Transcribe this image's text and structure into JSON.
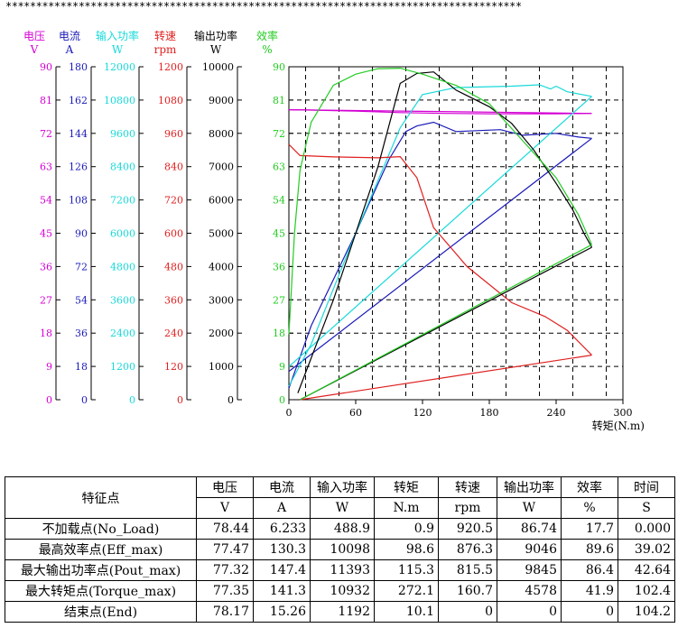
{
  "header_stars": "*************************************************************************************",
  "chart_data": {
    "type": "line",
    "x_label": "转矩(N.m)",
    "x_range": [
      0,
      300
    ],
    "x_ticks": [
      0,
      60,
      120,
      180,
      240,
      300
    ],
    "axes": [
      {
        "name": "电压",
        "unit": "V",
        "color": "#d400d4",
        "range": [
          0,
          90
        ],
        "ticks": [
          "0",
          "9",
          "18",
          "27",
          "36",
          "45",
          "54",
          "63",
          "72",
          "81",
          "90"
        ]
      },
      {
        "name": "电流",
        "unit": "A",
        "color": "#1a1ab8",
        "range": [
          0,
          180
        ],
        "ticks": [
          "0",
          "18",
          "36",
          "54",
          "72",
          "90",
          "108",
          "126",
          "144",
          "162",
          "180"
        ]
      },
      {
        "name": "输入功率",
        "unit": "W",
        "color": "#19d9d9",
        "range": [
          0,
          12000
        ],
        "ticks": [
          "0",
          "1200",
          "2400",
          "3600",
          "4800",
          "6000",
          "7200",
          "8400",
          "9600",
          "10800",
          "12000"
        ]
      },
      {
        "name": "转速",
        "unit": "rpm",
        "color": "#e02020",
        "range": [
          0,
          1200
        ],
        "ticks": [
          "0",
          "120",
          "240",
          "360",
          "480",
          "600",
          "720",
          "840",
          "960",
          "1080",
          "1200"
        ]
      },
      {
        "name": "输出功率",
        "unit": "W",
        "color": "#000000",
        "range": [
          0,
          10000
        ],
        "ticks": [
          "0",
          "1000",
          "2000",
          "3000",
          "4000",
          "5000",
          "6000",
          "7000",
          "8000",
          "9000",
          "10000"
        ]
      },
      {
        "name": "效率",
        "unit": "%",
        "color": "#22cc22",
        "range": [
          0,
          90
        ],
        "ticks": [
          "0",
          "9",
          "18",
          "27",
          "36",
          "45",
          "54",
          "63",
          "72",
          "81",
          "90"
        ]
      }
    ],
    "series": [
      {
        "axis": 0,
        "x": [
          0,
          20,
          60,
          100,
          140,
          180,
          220,
          240,
          260,
          272
        ],
        "y": [
          78.4,
          78.3,
          78.0,
          77.6,
          77.4,
          77.3,
          77.3,
          77.3,
          77.35,
          77.4
        ]
      },
      {
        "axis": 0,
        "x": [
          272,
          0
        ],
        "y": [
          77.4,
          78.4
        ]
      },
      {
        "axis": 1,
        "x": [
          0,
          20,
          60,
          90,
          105,
          115,
          130,
          150,
          190,
          210,
          240,
          260,
          272
        ],
        "y": [
          6.2,
          40,
          90,
          130,
          145,
          148,
          150,
          145,
          146,
          143,
          144,
          142,
          141.3
        ]
      },
      {
        "axis": 1,
        "x": [
          272,
          0
        ],
        "y": [
          141.3,
          15.3
        ]
      },
      {
        "axis": 2,
        "x": [
          0,
          20,
          60,
          100,
          120,
          150,
          200,
          225,
          235,
          240,
          250,
          272
        ],
        "y": [
          489,
          2000,
          6000,
          9800,
          11000,
          11250,
          11300,
          11350,
          11200,
          11300,
          11100,
          10932
        ]
      },
      {
        "axis": 2,
        "x": [
          272,
          0
        ],
        "y": [
          10932,
          1192
        ]
      },
      {
        "axis": 3,
        "x": [
          0,
          10,
          40,
          80,
          100,
          115,
          130,
          160,
          200,
          230,
          250,
          272
        ],
        "y": [
          920,
          880,
          875,
          872,
          876,
          800,
          620,
          480,
          350,
          300,
          250,
          160.7
        ]
      },
      {
        "axis": 3,
        "x": [
          272,
          10
        ],
        "y": [
          160.7,
          0
        ]
      },
      {
        "axis": 4,
        "x": [
          8,
          40,
          80,
          100,
          115,
          130,
          150,
          180,
          200,
          220,
          240,
          255,
          265,
          272
        ],
        "y": [
          200,
          3000,
          7000,
          9500,
          9800,
          9845,
          9300,
          8800,
          8300,
          7500,
          6500,
          5700,
          5000,
          4578
        ]
      },
      {
        "axis": 4,
        "x": [
          272,
          10
        ],
        "y": [
          4578,
          0
        ]
      },
      {
        "axis": 5,
        "x": [
          0,
          5,
          10,
          20,
          40,
          60,
          80,
          100,
          120,
          150,
          180,
          210,
          240,
          260,
          272
        ],
        "y": [
          17.7,
          45,
          62,
          75,
          85,
          88,
          89.5,
          89.6,
          88,
          85,
          80,
          70,
          60,
          50,
          41.9
        ]
      },
      {
        "axis": 5,
        "x": [
          272,
          10
        ],
        "y": [
          41.9,
          0
        ]
      }
    ]
  },
  "table": {
    "header_top": [
      "特征点",
      "电压",
      "电流",
      "输入功率",
      "转矩",
      "转速",
      "输出功率",
      "效率",
      "时间"
    ],
    "header_units": [
      "V",
      "A",
      "W",
      "N.m",
      "rpm",
      "W",
      "%",
      "S"
    ],
    "rows": [
      {
        "name": "不加载点(No_Load)",
        "values": [
          "78.44",
          "6.233",
          "488.9",
          "0.9",
          "920.5",
          "86.74",
          "17.7",
          "0.000"
        ]
      },
      {
        "name": "最高效率点(Eff_max)",
        "values": [
          "77.47",
          "130.3",
          "10098",
          "98.6",
          "876.3",
          "9046",
          "89.6",
          "39.02"
        ]
      },
      {
        "name": "最大输出功率点(Pout_max)",
        "values": [
          "77.32",
          "147.4",
          "11393",
          "115.3",
          "815.5",
          "9845",
          "86.4",
          "42.64"
        ]
      },
      {
        "name": "最大转矩点(Torque_max)",
        "values": [
          "77.35",
          "141.3",
          "10932",
          "272.1",
          "160.7",
          "4578",
          "41.9",
          "102.4"
        ]
      },
      {
        "name": "结束点(End)",
        "values": [
          "78.17",
          "15.26",
          "1192",
          "10.1",
          "0",
          "0",
          "0",
          "104.2"
        ]
      }
    ]
  }
}
